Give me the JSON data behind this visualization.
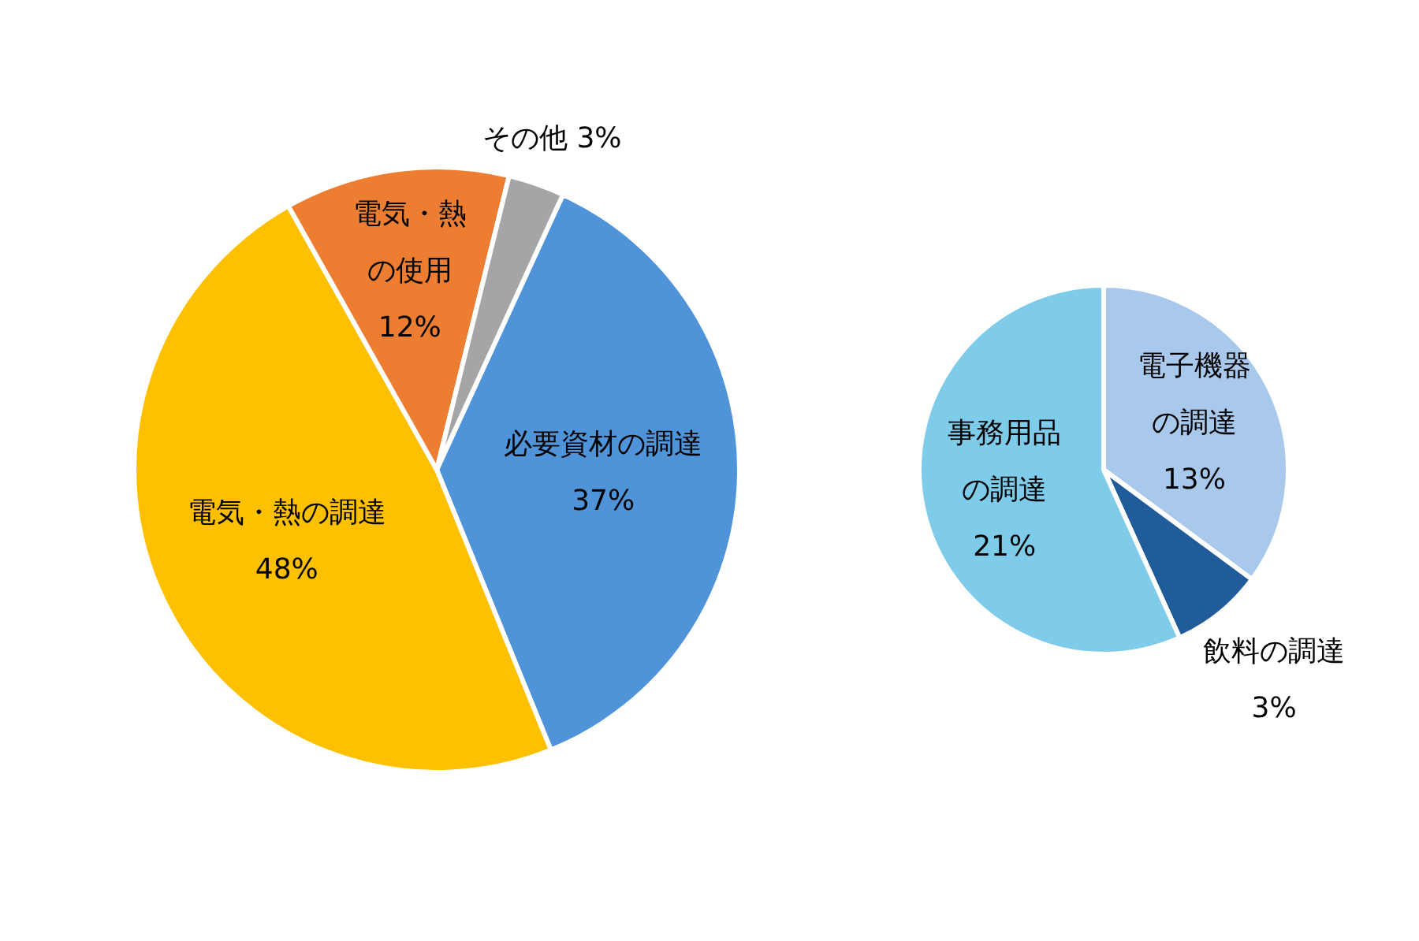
{
  "chart_data": [
    {
      "type": "pie",
      "categories": [
        "必要資材の調達",
        "電気・熱の調達",
        "電気・熱の使用",
        "その他"
      ],
      "values": [
        37,
        48,
        12,
        3
      ],
      "value_labels": [
        "37%",
        "48%",
        "12%",
        "3%"
      ],
      "colors": [
        "#4f94d9",
        "#ffc000",
        "#ed7d31",
        "#a5a5a5"
      ]
    },
    {
      "type": "pie",
      "categories": [
        "電子機器の調達",
        "飲料の調達",
        "事務用品の調達"
      ],
      "values": [
        13,
        3,
        21
      ],
      "value_labels": [
        "13%",
        "3%",
        "21%"
      ],
      "colors": [
        "#a9c9ec",
        "#1f5c99",
        "#7ecbea"
      ]
    }
  ]
}
